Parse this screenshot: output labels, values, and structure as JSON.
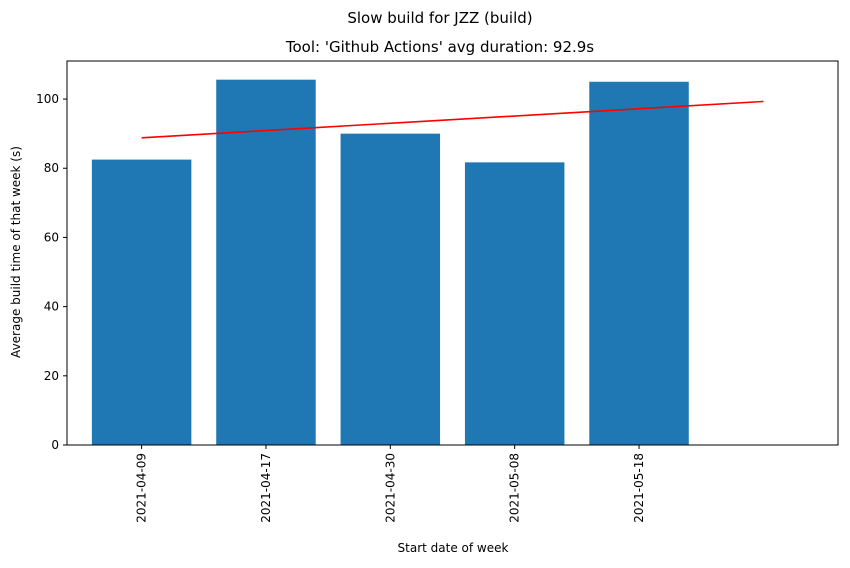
{
  "chart_data": {
    "type": "bar",
    "suptitle": "Slow build for JZZ (build)",
    "title": "Tool: 'Github Actions' avg duration: 92.9s",
    "xlabel": "Start date of week",
    "ylabel": "Average build time of that week (s)",
    "categories": [
      "2021-04-09",
      "2021-04-17",
      "2021-04-30",
      "2021-05-08",
      "2021-05-18"
    ],
    "values": [
      82.5,
      105.6,
      90.0,
      81.7,
      105.0
    ],
    "ylim": [
      0,
      111
    ],
    "yticks": [
      0,
      20,
      40,
      60,
      80,
      100
    ],
    "bar_color": "#1f77b4",
    "trend_line": {
      "color": "#ff0000",
      "start": 88.8,
      "end": 99.3,
      "x_span_categories": [
        0,
        5
      ]
    },
    "grid": false,
    "legend": "none"
  }
}
